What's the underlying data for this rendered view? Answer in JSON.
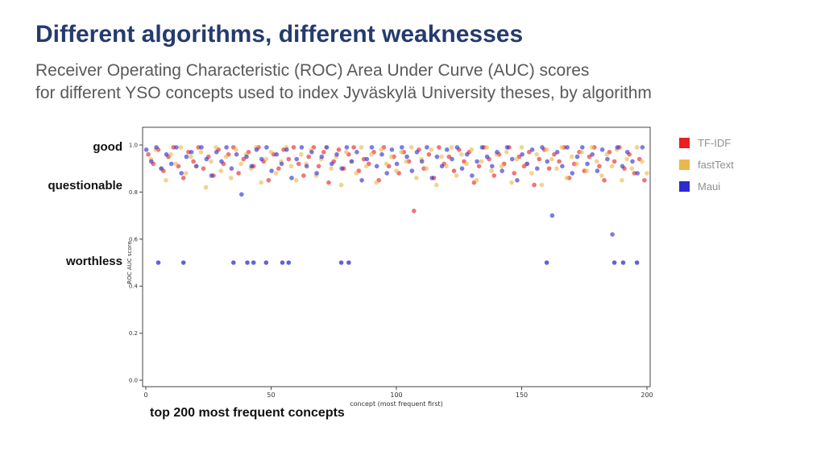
{
  "slide": {
    "title": "Different algorithms, different weaknesses",
    "title_color": "#253b6e",
    "subtitle1": "Receiver Operating Characteristic (ROC) Area Under Curve (AUC) scores",
    "subtitle2": "for different YSO concepts used to index Jyväskylä University theses, by algorithm",
    "band_labels": [
      "good",
      "questionable",
      "worthless"
    ],
    "caption": "top 200 most frequent concepts"
  },
  "chart_data": {
    "type": "scatter",
    "title": "",
    "xlabel": "concept (most frequent first)",
    "ylabel": "ROC AUC score",
    "xlim": [
      0,
      200
    ],
    "ylim": [
      0.0,
      1.0
    ],
    "grid": false,
    "legend_position": "right",
    "x_tick_values": [
      0,
      50,
      100,
      150,
      200
    ],
    "x_tick_labels": [
      "0",
      "50",
      "100",
      "150",
      "200"
    ],
    "y_tick_values": [
      0.0,
      0.2,
      0.4,
      0.6,
      0.8,
      1.0
    ],
    "y_tick_labels": [
      "0.0",
      "0.2",
      "0.4",
      "0.6",
      "0.8",
      "1.0"
    ],
    "series": [
      {
        "name": "TF-IDF",
        "color": "#e62020",
        "x0": 1,
        "dx": 2,
        "y": [
          0.96,
          0.92,
          0.98,
          0.89,
          0.95,
          0.99,
          0.91,
          0.86,
          0.97,
          0.93,
          0.99,
          0.9,
          0.95,
          0.87,
          0.98,
          0.92,
          0.96,
          0.99,
          0.88,
          0.94,
          0.97,
          0.91,
          0.99,
          0.93,
          0.85,
          0.96,
          0.9,
          0.98,
          0.94,
          0.99,
          0.92,
          0.87,
          0.95,
          0.99,
          0.91,
          0.97,
          0.84,
          0.93,
          0.98,
          0.9,
          0.96,
          0.99,
          0.89,
          0.94,
          0.92,
          0.97,
          0.85,
          0.99,
          0.91,
          0.95,
          0.88,
          0.97,
          0.93,
          0.72,
          0.98,
          0.9,
          0.96,
          0.86,
          0.99,
          0.92,
          0.95,
          0.89,
          0.98,
          0.93,
          0.97,
          0.84,
          0.91,
          0.99,
          0.94,
          0.87,
          0.96,
          0.92,
          0.99,
          0.88,
          0.95,
          0.91,
          0.97,
          0.83,
          0.94,
          0.98,
          0.9,
          0.96,
          0.93,
          0.99,
          0.86,
          0.92,
          0.97,
          0.89,
          0.95,
          0.99,
          0.91,
          0.85,
          0.97,
          0.93,
          0.99,
          0.9,
          0.96,
          0.88,
          0.94,
          0.85
        ],
        "extra": []
      },
      {
        "name": "fastText",
        "color": "#eab84a",
        "x0": 2,
        "dx": 2,
        "y": [
          0.94,
          0.98,
          0.9,
          0.85,
          0.96,
          0.92,
          0.99,
          0.88,
          0.95,
          0.91,
          0.97,
          0.82,
          0.93,
          0.99,
          0.89,
          0.95,
          0.86,
          0.98,
          0.92,
          0.96,
          0.9,
          0.99,
          0.84,
          0.94,
          0.97,
          0.88,
          0.93,
          0.99,
          0.91,
          0.85,
          0.96,
          0.92,
          0.98,
          0.87,
          0.94,
          0.99,
          0.9,
          0.95,
          0.83,
          0.97,
          0.93,
          0.88,
          0.99,
          0.91,
          0.96,
          0.84,
          0.98,
          0.92,
          0.95,
          0.89,
          0.97,
          0.93,
          0.99,
          0.86,
          0.94,
          0.9,
          0.98,
          0.83,
          0.95,
          0.91,
          0.99,
          0.87,
          0.96,
          0.92,
          0.98,
          0.85,
          0.93,
          0.99,
          0.89,
          0.96,
          0.91,
          0.97,
          0.84,
          0.94,
          0.99,
          0.92,
          0.88,
          0.96,
          0.83,
          0.98,
          0.94,
          0.9,
          0.99,
          0.86,
          0.95,
          0.92,
          0.97,
          0.89,
          0.99,
          0.93,
          0.87,
          0.96,
          0.91,
          0.98,
          0.85,
          0.94,
          0.9,
          0.99,
          0.93,
          0.88
        ],
        "extra": []
      },
      {
        "name": "Maui",
        "color": "#2c2cd0",
        "x0": 0.2,
        "dx": 2,
        "y": [
          0.98,
          0.93,
          0.99,
          0.9,
          0.96,
          0.92,
          0.99,
          0.88,
          0.95,
          0.97,
          0.91,
          0.99,
          0.94,
          0.87,
          0.97,
          0.93,
          0.99,
          0.9,
          0.96,
          0.79,
          0.95,
          0.91,
          0.98,
          0.94,
          0.99,
          0.89,
          0.96,
          0.92,
          0.98,
          0.86,
          0.94,
          0.99,
          0.91,
          0.97,
          0.88,
          0.95,
          0.99,
          0.92,
          0.96,
          0.9,
          0.99,
          0.93,
          0.97,
          0.85,
          0.94,
          0.99,
          0.91,
          0.96,
          0.88,
          0.98,
          0.92,
          0.99,
          0.95,
          0.89,
          0.97,
          0.93,
          0.99,
          0.86,
          0.95,
          0.91,
          0.98,
          0.94,
          0.99,
          0.9,
          0.96,
          0.87,
          0.93,
          0.99,
          0.95,
          0.91,
          0.97,
          0.89,
          0.99,
          0.94,
          0.85,
          0.96,
          0.92,
          0.98,
          0.9,
          0.99,
          0.93,
          0.7,
          0.97,
          0.91,
          0.99,
          0.88,
          0.95,
          0.99,
          0.92,
          0.96,
          0.89,
          0.98,
          0.94,
          0.62,
          0.99,
          0.91,
          0.97,
          0.93,
          0.88,
          0.99
        ],
        "extra": [
          [
            5,
            0.5
          ],
          [
            15,
            0.5
          ],
          [
            35,
            0.5
          ],
          [
            40.5,
            0.5
          ],
          [
            43,
            0.5
          ],
          [
            48,
            0.5
          ],
          [
            54.5,
            0.5
          ],
          [
            57,
            0.5
          ],
          [
            78,
            0.5
          ],
          [
            81,
            0.5
          ],
          [
            160,
            0.5
          ],
          [
            187,
            0.5
          ],
          [
            190.5,
            0.5
          ],
          [
            196,
            0.5
          ]
        ]
      }
    ]
  }
}
